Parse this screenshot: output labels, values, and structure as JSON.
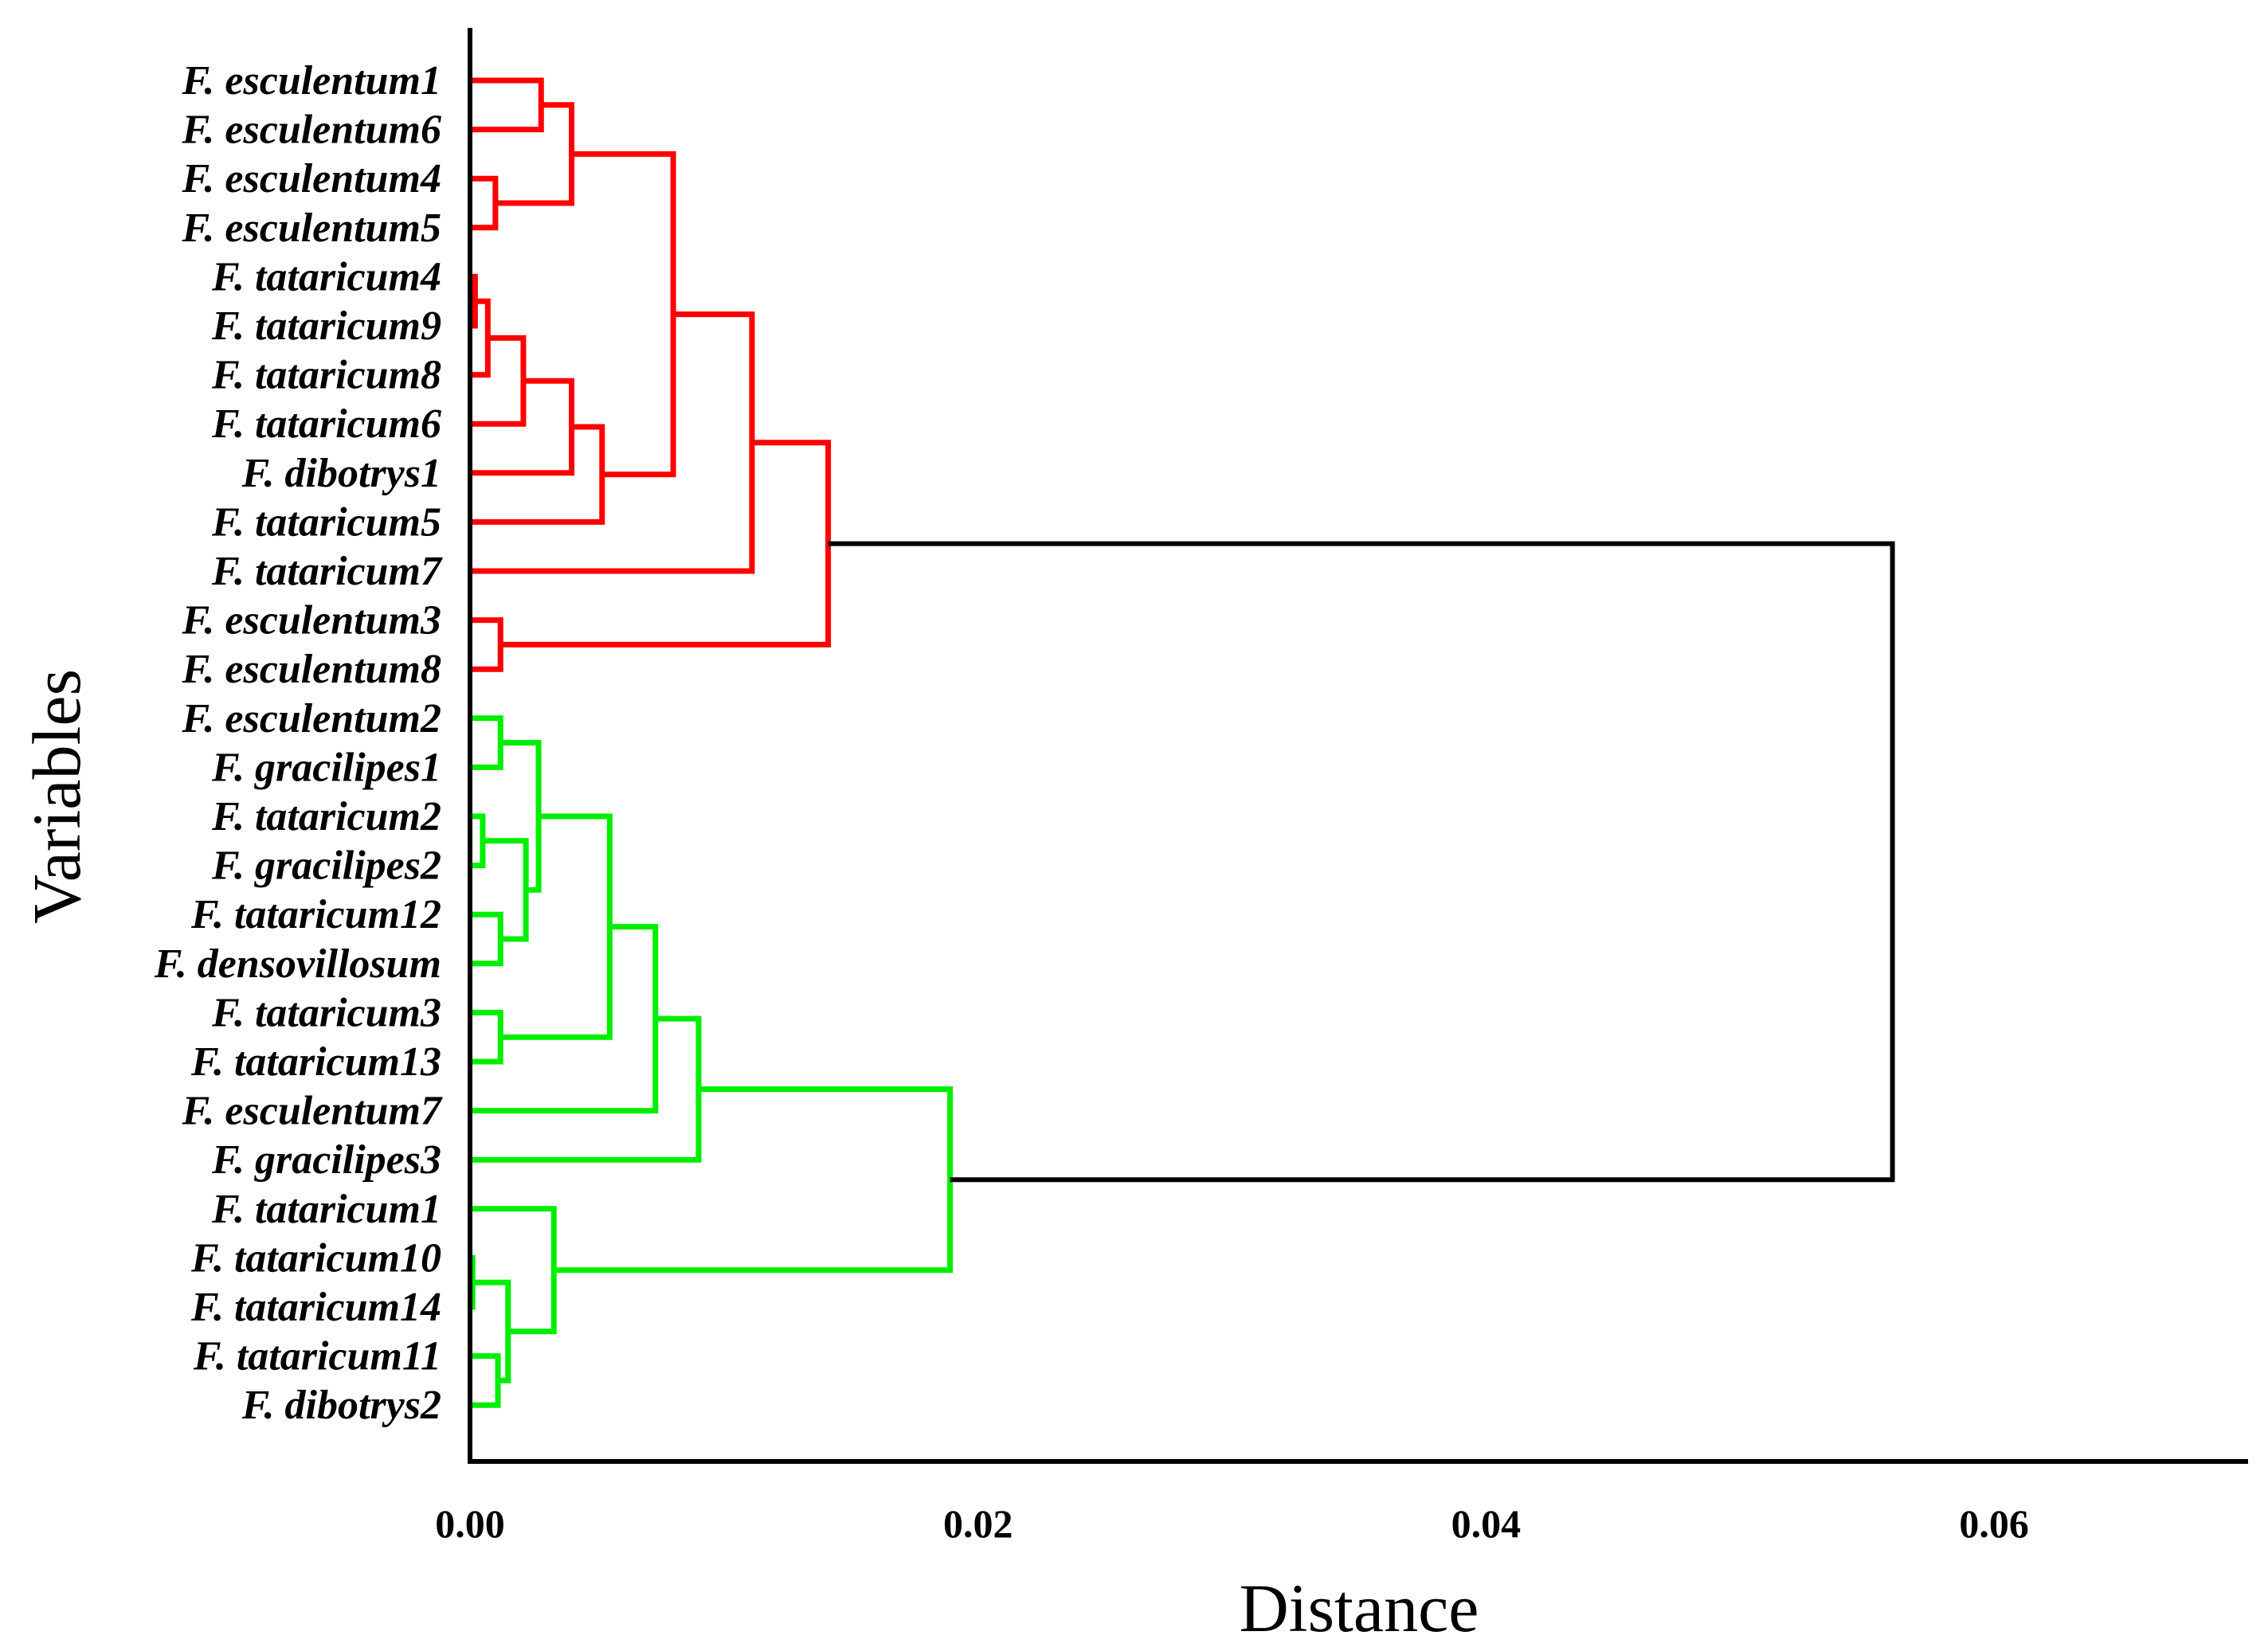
{
  "chart_data": {
    "type": "dendrogram",
    "orientation": "horizontal",
    "title": "",
    "xlabel": "Distance",
    "ylabel": "Variables",
    "xlim": [
      0,
      0.07
    ],
    "xticks": [
      {
        "value": 0.0,
        "label": "0.00"
      },
      {
        "value": 0.02,
        "label": "0.02"
      },
      {
        "value": 0.04,
        "label": "0.04"
      },
      {
        "value": 0.06,
        "label": "0.06"
      }
    ],
    "colors": {
      "cluster1": "#ff0000",
      "cluster2": "#00ee00",
      "root": "#000000",
      "axis": "#000000"
    },
    "leaves": [
      "F. esculentum1",
      "F. esculentum6",
      "F. esculentum4",
      "F. esculentum5",
      "F. tataricum4",
      "F. tataricum9",
      "F. tataricum8",
      "F. tataricum6",
      "F. dibotrys1",
      "F. tataricum5",
      "F. tataricum7",
      "F. esculentum3",
      "F. esculentum8",
      "F. esculentum2",
      "F. gracilipes1",
      "F. tataricum2",
      "F. gracilipes2",
      "F. tataricum12",
      "F. densovillosum",
      "F. tataricum3",
      "F. tataricum13",
      "F. esculentum7",
      "F. gracilipes3",
      "F. tataricum1",
      "F. tataricum10",
      "F. tataricum14",
      "F. tataricum11",
      "F. dibotrys2"
    ],
    "merges": [
      {
        "id": "a1",
        "left": 0,
        "right": 1,
        "height": 0.0028,
        "color": "cluster1"
      },
      {
        "id": "a2",
        "left": 2,
        "right": 3,
        "height": 0.001,
        "color": "cluster1"
      },
      {
        "id": "a3",
        "left": "a1",
        "right": "a2",
        "height": 0.004,
        "color": "cluster1"
      },
      {
        "id": "b1",
        "left": 4,
        "right": 5,
        "height": 0.0002,
        "color": "cluster1"
      },
      {
        "id": "b2",
        "left": "b1",
        "right": 6,
        "height": 0.0007,
        "color": "cluster1"
      },
      {
        "id": "b3",
        "left": "b2",
        "right": 7,
        "height": 0.0021,
        "color": "cluster1"
      },
      {
        "id": "b4",
        "left": "b3",
        "right": 8,
        "height": 0.004,
        "color": "cluster1"
      },
      {
        "id": "b5",
        "left": "b4",
        "right": 9,
        "height": 0.0052,
        "color": "cluster1"
      },
      {
        "id": "c1",
        "left": "a3",
        "right": "b5",
        "height": 0.008,
        "color": "cluster1"
      },
      {
        "id": "c2",
        "left": "c1",
        "right": 10,
        "height": 0.0111,
        "color": "cluster1"
      },
      {
        "id": "d1",
        "left": 11,
        "right": 12,
        "height": 0.0012,
        "color": "cluster1"
      },
      {
        "id": "R",
        "left": "c2",
        "right": "d1",
        "height": 0.0141,
        "color": "cluster1"
      },
      {
        "id": "e1",
        "left": 13,
        "right": 14,
        "height": 0.0012,
        "color": "cluster2"
      },
      {
        "id": "e2",
        "left": 15,
        "right": 16,
        "height": 0.0005,
        "color": "cluster2"
      },
      {
        "id": "e3",
        "left": 17,
        "right": 18,
        "height": 0.0012,
        "color": "cluster2"
      },
      {
        "id": "e4",
        "left": "e2",
        "right": "e3",
        "height": 0.0022,
        "color": "cluster2"
      },
      {
        "id": "e5",
        "left": "e1",
        "right": "e4",
        "height": 0.0027,
        "color": "cluster2"
      },
      {
        "id": "e6",
        "left": 19,
        "right": 20,
        "height": 0.0012,
        "color": "cluster2"
      },
      {
        "id": "e7",
        "left": "e5",
        "right": "e6",
        "height": 0.0055,
        "color": "cluster2"
      },
      {
        "id": "e8",
        "left": "e7",
        "right": 21,
        "height": 0.0073,
        "color": "cluster2"
      },
      {
        "id": "e9",
        "left": "e8",
        "right": 22,
        "height": 0.009,
        "color": "cluster2"
      },
      {
        "id": "f1",
        "left": 24,
        "right": 25,
        "height": 0.0001,
        "color": "cluster2"
      },
      {
        "id": "f2",
        "left": 26,
        "right": 27,
        "height": 0.0011,
        "color": "cluster2"
      },
      {
        "id": "f3",
        "left": "f1",
        "right": "f2",
        "height": 0.0015,
        "color": "cluster2"
      },
      {
        "id": "f4",
        "left": 23,
        "right": "f3",
        "height": 0.0033,
        "color": "cluster2"
      },
      {
        "id": "G",
        "left": "e9",
        "right": "f4",
        "height": 0.0189,
        "color": "cluster2"
      },
      {
        "id": "root",
        "left": "R",
        "right": "G",
        "height": 0.056,
        "color": "root"
      }
    ]
  }
}
